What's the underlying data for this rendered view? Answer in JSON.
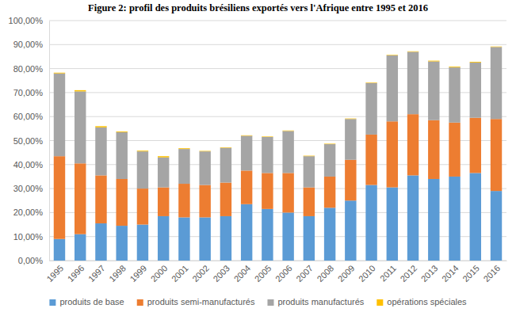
{
  "chart_data": {
    "type": "bar",
    "title": "Figure 2: profil des produits brésiliens exportés vers l'Afrique entre 1995 et 2016",
    "stacked": true,
    "grid": true,
    "legend": "bottom",
    "categories": [
      "1995",
      "1996",
      "1997",
      "1998",
      "1999",
      "2000",
      "2001",
      "2002",
      "2003",
      "2004",
      "2005",
      "2006",
      "2007",
      "2008",
      "2009",
      "2010",
      "2011",
      "2012",
      "2013",
      "2014",
      "2015",
      "2016"
    ],
    "series": [
      {
        "name": "produits de base",
        "color": "#5b9bd5",
        "values": [
          9,
          11,
          15.5,
          14.5,
          15,
          18.5,
          18,
          18,
          18.5,
          23.5,
          21.5,
          20,
          18.5,
          22,
          25,
          31.5,
          30.5,
          35.5,
          34,
          35,
          36.5,
          29
        ]
      },
      {
        "name": "produits semi-manufacturés",
        "color": "#ed7d31",
        "values": [
          34.5,
          29.5,
          20,
          19.5,
          15,
          12,
          14,
          13.5,
          14,
          14,
          15,
          16.5,
          12,
          13,
          17,
          21,
          27.5,
          25.5,
          24.5,
          22.5,
          23,
          30
        ]
      },
      {
        "name": "produits manufacturés",
        "color": "#a5a5a5",
        "values": [
          34.5,
          30,
          20,
          19.5,
          15.5,
          12.5,
          14.5,
          14,
          14.5,
          14.5,
          15,
          17.5,
          13,
          13.5,
          17,
          21.5,
          27.5,
          26,
          24.5,
          23,
          23,
          30
        ]
      },
      {
        "name": "opérations spéciales",
        "color": "#ffc000",
        "values": [
          0.3,
          0.5,
          0.5,
          0.3,
          0.3,
          0.5,
          0.3,
          0.2,
          0.2,
          0.2,
          0.2,
          0.2,
          0.2,
          0.2,
          0.2,
          0.2,
          0.2,
          0.2,
          0.3,
          0.3,
          0.3,
          0.2
        ]
      }
    ],
    "ylim": [
      0,
      100
    ],
    "yticks": [
      {
        "value": 0,
        "label": "0,00%"
      },
      {
        "value": 10,
        "label": "10,00%"
      },
      {
        "value": 20,
        "label": "20,00%"
      },
      {
        "value": 30,
        "label": "30,00%"
      },
      {
        "value": 40,
        "label": "40,00%"
      },
      {
        "value": 50,
        "label": "50,00%"
      },
      {
        "value": 60,
        "label": "60,00%"
      },
      {
        "value": 70,
        "label": "70,00%"
      },
      {
        "value": 80,
        "label": "80,00%"
      },
      {
        "value": 90,
        "label": "90,00%"
      },
      {
        "value": 100,
        "label": "100,00%"
      }
    ]
  }
}
